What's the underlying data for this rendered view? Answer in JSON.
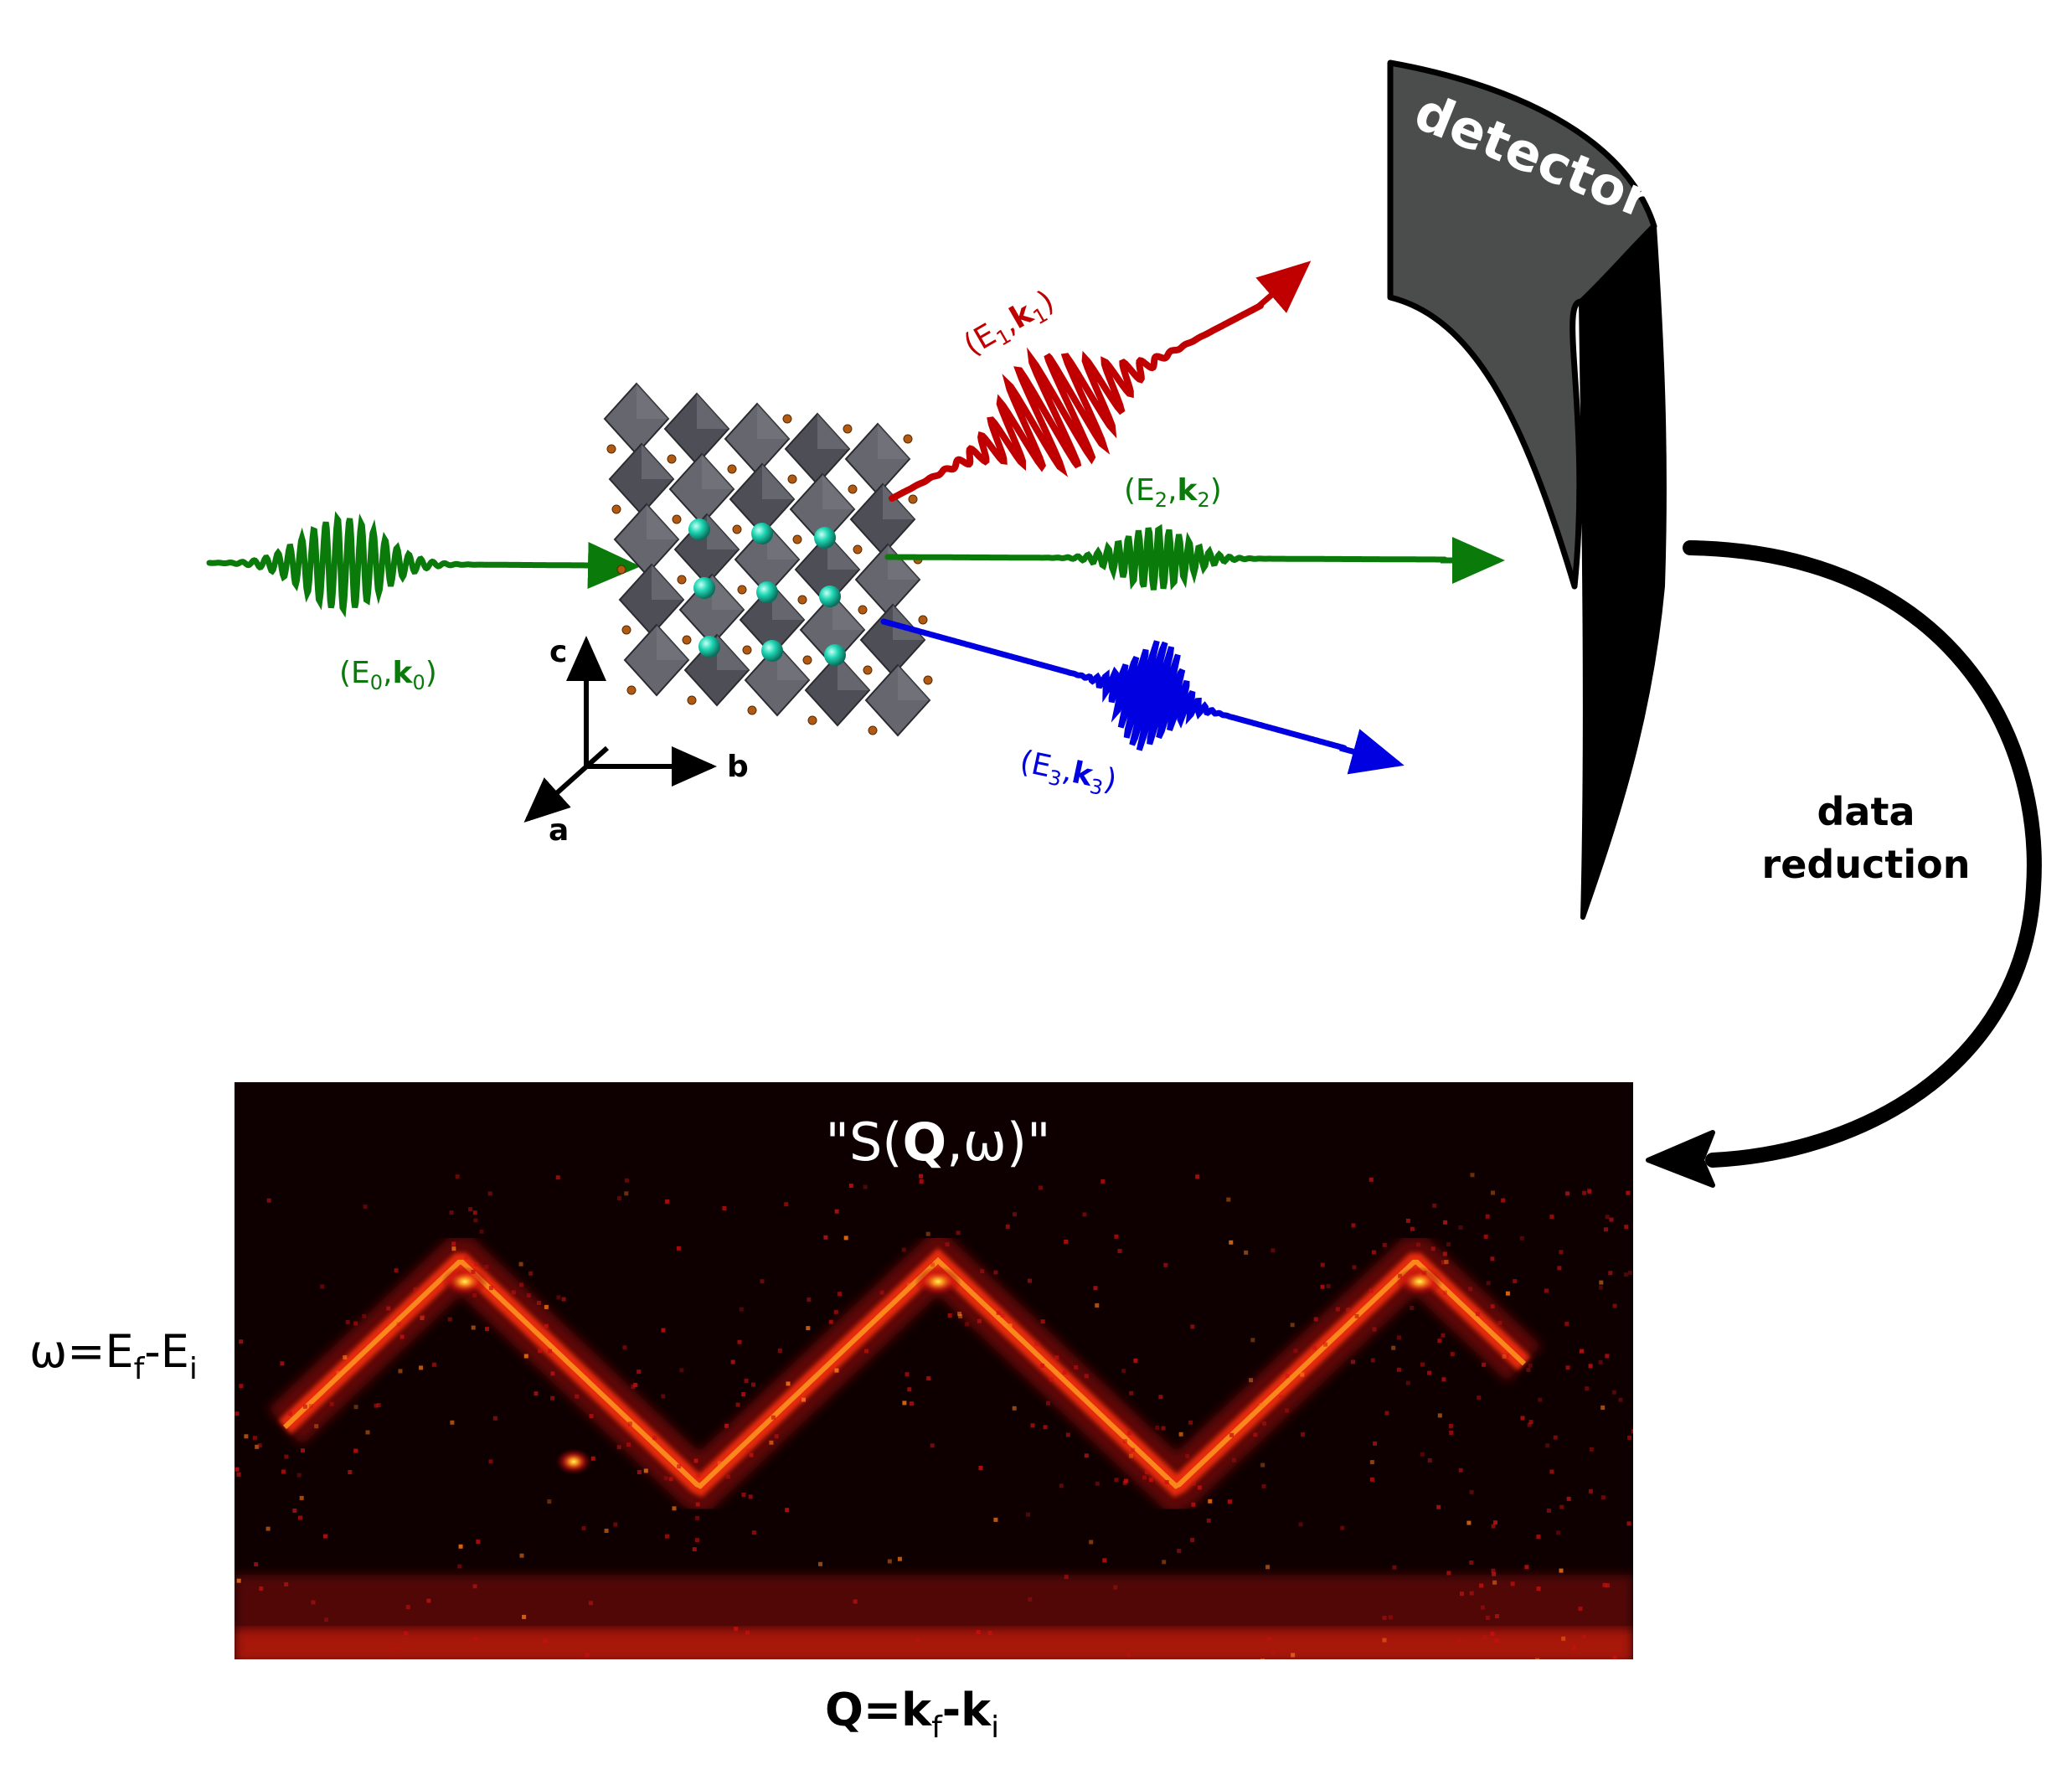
{
  "beams": {
    "incident": {
      "energy": "E",
      "energy_sub": "0",
      "k": "k",
      "k_sub": "0",
      "color": "#0a7a0a"
    },
    "scattered_1": {
      "energy": "E",
      "energy_sub": "1",
      "k": "k",
      "k_sub": "1",
      "color": "#c00000"
    },
    "scattered_2": {
      "energy": "E",
      "energy_sub": "2",
      "k": "k",
      "k_sub": "2",
      "color": "#0a7a0a"
    },
    "scattered_3": {
      "energy": "E",
      "energy_sub": "3",
      "k": "k",
      "k_sub": "3",
      "color": "#0000e0"
    }
  },
  "axes": {
    "a": "a",
    "b": "b",
    "c": "c"
  },
  "detector": {
    "label": "detector",
    "color": "#4a4d4c"
  },
  "process": {
    "line1": "data",
    "line2": "reduction"
  },
  "spectrum": {
    "title_open": "\"S(",
    "title_q": "Q",
    "title_close": ",ω)\"",
    "y_label_main": "ω=E",
    "y_label_sub_f": "f",
    "y_label_mid": "-E",
    "y_label_sub_i": "i",
    "x_label_q": "Q=k",
    "x_label_sub_f": "f",
    "x_label_mid": "-k",
    "x_label_sub_i": "i"
  },
  "crystal": {
    "octahedron_color": "#5c5c64",
    "atom_color": "#1fd6b4",
    "oxygen_color": "#b05a14"
  }
}
